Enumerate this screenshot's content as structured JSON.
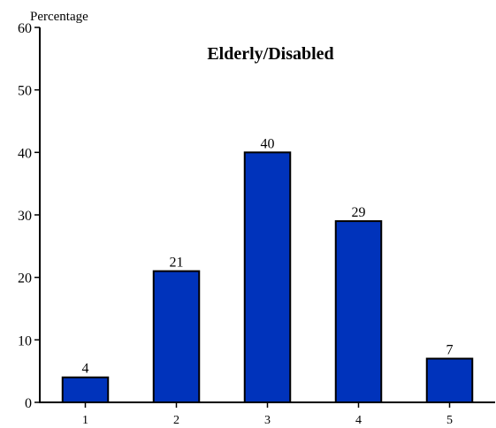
{
  "chart_data": {
    "type": "bar",
    "title": "Elderly/Disabled",
    "ylabel": "Percentage",
    "xlabel": "",
    "categories": [
      "1",
      "2",
      "3",
      "4",
      "5"
    ],
    "values": [
      4,
      21,
      40,
      29,
      7
    ],
    "data_labels": [
      "4",
      "21",
      "40",
      "29",
      "7"
    ],
    "ylim": [
      0,
      60
    ],
    "yticks": [
      "0",
      "10",
      "20",
      "30",
      "40",
      "50",
      "60"
    ],
    "grid": false,
    "legend": "none",
    "bar_color": "#0033bb",
    "bar_edge_color": "#000000"
  }
}
